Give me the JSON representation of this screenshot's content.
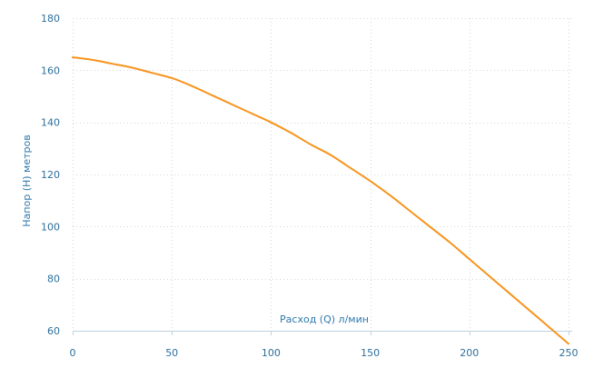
{
  "chart_data": {
    "type": "line",
    "title": "",
    "xlabel": "Расход (Q) л/мин",
    "ylabel": "Напор (H) метров",
    "xlim": [
      0,
      250
    ],
    "ylim": [
      60,
      180
    ],
    "x_ticks": [
      0,
      50,
      100,
      150,
      200,
      250
    ],
    "y_ticks": [
      60,
      80,
      100,
      120,
      140,
      160,
      180
    ],
    "grid": true,
    "colors": {
      "line": "#f7941d",
      "axis_text": "#2d6f9c",
      "grid": "#cfd8dd"
    },
    "series": [
      {
        "x": [
          0,
          10,
          20,
          30,
          40,
          50,
          60,
          70,
          80,
          90,
          100,
          110,
          120,
          130,
          140,
          150,
          160,
          170,
          180,
          190,
          200,
          210,
          220,
          230,
          240,
          250
        ],
        "y": [
          165,
          164,
          162.5,
          161,
          159,
          157,
          154,
          150.5,
          147,
          143.5,
          140,
          136,
          131.5,
          127.5,
          122.5,
          117.5,
          112,
          106,
          100,
          94,
          87.5,
          81,
          74.5,
          68,
          61.5,
          55
        ]
      }
    ]
  }
}
